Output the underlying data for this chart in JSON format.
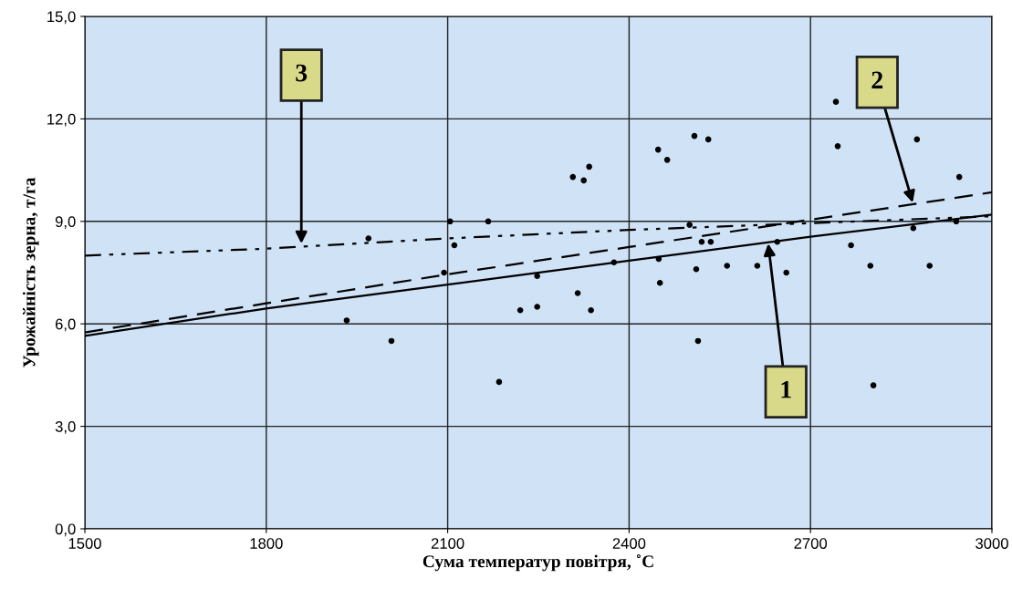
{
  "chart_data": {
    "type": "scatter",
    "xlabel": "Сума температур повітря, ˚С",
    "ylabel": "Урожайність зерна, т/га",
    "xlim": [
      1500,
      3000
    ],
    "xticks": [
      1500,
      1800,
      2100,
      2400,
      2700,
      3000
    ],
    "ylim": [
      0,
      15
    ],
    "yticks": [
      {
        "value": 0,
        "label": "0,0"
      },
      {
        "value": 3,
        "label": "3,0"
      },
      {
        "value": 6,
        "label": "6,0"
      },
      {
        "value": 9,
        "label": "9,0"
      },
      {
        "value": 12,
        "label": "12,0"
      },
      {
        "value": 15,
        "label": "15,0"
      }
    ],
    "grid": true,
    "series": [
      {
        "color": "#000000",
        "marker": "circle",
        "x": [
          1933,
          2007,
          1969,
          2104,
          2111,
          2167,
          2094,
          2185,
          2220,
          2248,
          2248,
          2307,
          2325,
          2334,
          2315,
          2337,
          2375,
          2448,
          2463,
          2508,
          2531,
          2449,
          2451,
          2500,
          2520,
          2535,
          2511,
          2514,
          2562,
          2612,
          2645,
          2660,
          2742,
          2745,
          2767,
          2799,
          2804,
          2870,
          2876,
          2897,
          2946,
          2941
        ],
        "values": [
          6.1,
          5.5,
          8.5,
          9.0,
          8.3,
          9.0,
          7.5,
          4.3,
          6.4,
          7.4,
          6.5,
          10.3,
          10.2,
          10.6,
          6.9,
          6.4,
          7.8,
          11.1,
          10.8,
          11.5,
          11.4,
          7.9,
          7.2,
          8.9,
          8.4,
          8.4,
          7.6,
          5.5,
          7.7,
          7.7,
          8.4,
          7.5,
          12.5,
          11.2,
          8.3,
          7.7,
          4.2,
          8.8,
          11.4,
          7.7,
          10.3,
          9.0
        ]
      },
      {
        "type": "line",
        "color": "#000000",
        "line_style": "solid",
        "x": [
          1500,
          1800,
          2100,
          2400,
          2700,
          3000
        ],
        "values": [
          5.65,
          6.45,
          7.15,
          7.85,
          8.55,
          9.2
        ]
      },
      {
        "type": "line",
        "color": "#000000",
        "line_style": "dashed",
        "x": [
          1500,
          1800,
          2100,
          2400,
          2700,
          3000
        ],
        "values": [
          5.75,
          6.6,
          7.45,
          8.25,
          9.05,
          9.85
        ]
      },
      {
        "type": "line",
        "color": "#000000",
        "line_style": "dotted",
        "x": [
          1500,
          1800,
          2100,
          2400,
          2700,
          3000
        ],
        "values": [
          8.0,
          8.2,
          8.5,
          8.75,
          8.95,
          9.15
        ]
      }
    ],
    "annotations": [
      {
        "text": "1",
        "x": 2630,
        "y": 8.35
      },
      {
        "text": "2",
        "x": 2869,
        "y": 9.55
      },
      {
        "text": "3",
        "x": 1858,
        "y": 8.35
      }
    ]
  }
}
